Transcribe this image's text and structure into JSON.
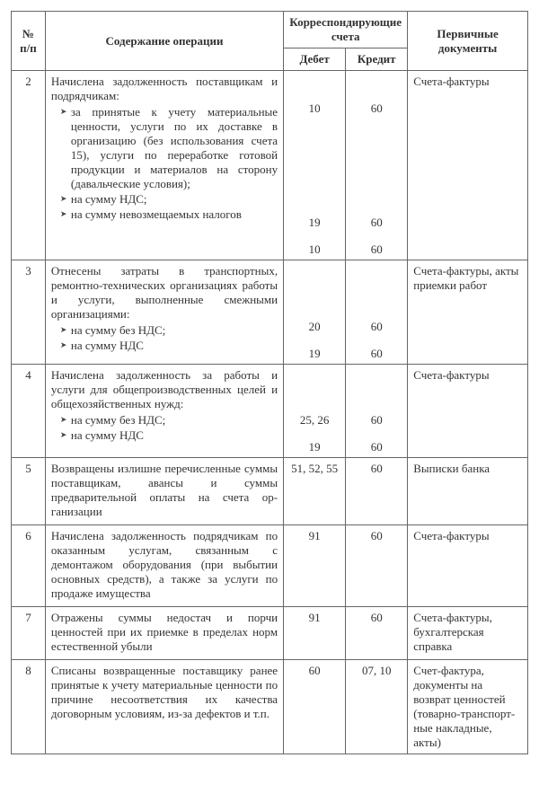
{
  "headers": {
    "num": "№ п/п",
    "desc": "Содержание операции",
    "corr": "Корреспондирующие счета",
    "debit": "Дебет",
    "credit": "Кредит",
    "docs": "Первичные документы"
  },
  "rows": [
    {
      "n": "2",
      "intro": "Начислена задолженность постав­щикам и подрядчикам:",
      "items": [
        "за принятые к учету материальные ценности, услуги по их доставке в организацию (без использования счета 15), услуги по переработке готовой продукции и материалов на сторону (давальческие условия);",
        "на сумму НДС;",
        "на сумму невозмещаемых налогов"
      ],
      "debit": [
        "10",
        "19",
        "10"
      ],
      "credit": [
        "60",
        "60",
        "60"
      ],
      "docs": "Счета-фактуры",
      "spacer_h": [
        30,
        112,
        15
      ]
    },
    {
      "n": "3",
      "intro": "Отнесены затраты в транспортных, ремонтно-технических организациях работы и услуги, выполненные смежными организациями:",
      "items": [
        "на сумму без НДС;",
        "на сумму НДС"
      ],
      "debit": [
        "20",
        "19"
      ],
      "credit": [
        "60",
        "60"
      ],
      "docs": "Счета-фактуры, акты приемки работ",
      "spacer_h": [
        62,
        15
      ]
    },
    {
      "n": "4",
      "intro": "Начислена задолженность за работы и услуги для общепроизводственных целей и общехозяйственных нужд:",
      "items": [
        "на сумму без НДС;",
        "на сумму НДС"
      ],
      "debit": [
        "25, 26",
        "19"
      ],
      "credit": [
        "60",
        "60"
      ],
      "docs": "Счета-фактуры",
      "spacer_h": [
        50,
        15
      ]
    },
    {
      "n": "5",
      "intro": "Возвращены излишне перечисленные суммы поставщикам, авансы и суммы предварительной оплаты на счета ор­ганизации",
      "items": [],
      "debit": [
        "51, 52, 55"
      ],
      "credit": [
        "60"
      ],
      "docs": "Выписки банка",
      "spacer_h": []
    },
    {
      "n": "6",
      "intro": "Начислена задолженность подрядчи­кам по оказанным услугам, связан­ным с демонтажом оборудования (при выбытии основных средств), а также за услуги по продаже иму­щества",
      "items": [],
      "debit": [
        "91"
      ],
      "credit": [
        "60"
      ],
      "docs": "Счета-фактуры",
      "spacer_h": []
    },
    {
      "n": "7",
      "intro": "Отражены суммы недостач и порчи ценностей при их приемке в преде­лах норм естественной убыли",
      "items": [],
      "debit": [
        "91"
      ],
      "credit": [
        "60"
      ],
      "docs": "Счета-фактуры, бухгалтерская справка",
      "spacer_h": []
    },
    {
      "n": "8",
      "intro": "Списаны возвращенные поставщику ранее принятые к учету материаль­ные ценности по причине несоот­ветствия их качества договорным ус­ловиям, из-за дефектов и т.п.",
      "items": [],
      "debit": [
        "60"
      ],
      "credit": [
        "07, 10"
      ],
      "docs": "Счет-фактура, документы на возврат ценно­стей (товар­но-транспорт­ные накладные, акты)",
      "spacer_h": []
    }
  ]
}
